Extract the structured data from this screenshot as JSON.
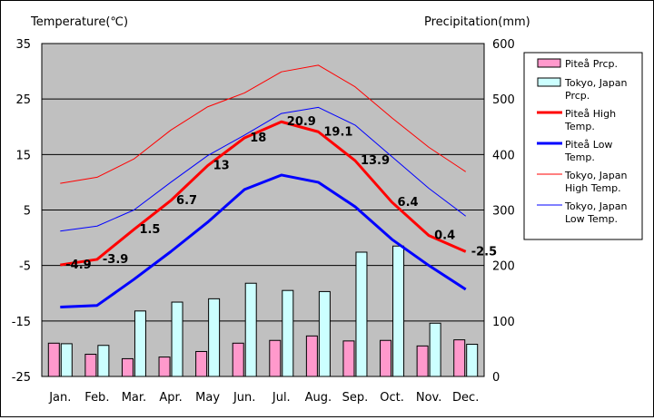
{
  "chart_data": {
    "type": "bar+line",
    "title_left": "Temperature(℃)",
    "title_right": "Precipitation(mm)",
    "categories": [
      "Jan.",
      "Feb.",
      "Mar.",
      "Apr.",
      "May",
      "Jun.",
      "Jul.",
      "Aug.",
      "Sep.",
      "Oct.",
      "Nov.",
      "Dec."
    ],
    "y_left": {
      "min": -25,
      "max": 35,
      "ticks": [
        35,
        25,
        15,
        5,
        -5,
        -15,
        -25
      ]
    },
    "y_right": {
      "min": 0,
      "max": 600,
      "ticks": [
        600,
        500,
        400,
        300,
        200,
        100,
        0
      ]
    },
    "bars": [
      {
        "name": "Piteå Prcp.",
        "color": "#ff99cc",
        "values": [
          60,
          40,
          32,
          35,
          45,
          60,
          65,
          73,
          64,
          65,
          55,
          66
        ]
      },
      {
        "name": "Tokyo, Japan Prcp.",
        "color": "#ccffff",
        "values": [
          59,
          56,
          118,
          134,
          140,
          168,
          155,
          153,
          224,
          235,
          96,
          58
        ]
      }
    ],
    "lines": [
      {
        "name": "Piteå High Temp.",
        "color": "#ff0000",
        "width": 3,
        "values": [
          -4.9,
          -3.9,
          1.5,
          6.7,
          13,
          18,
          20.9,
          19.1,
          13.9,
          6.4,
          0.4,
          -2.5
        ],
        "labels": [
          "-4.9",
          "-3.9",
          "1.5",
          "6.7",
          "13",
          "18",
          "20.9",
          "19.1",
          "13.9",
          "6.4",
          "0.4",
          "-2.5"
        ]
      },
      {
        "name": "Piteå Low Temp.",
        "color": "#0000ff",
        "width": 3,
        "values": [
          -12.5,
          -12.2,
          -7.5,
          -2.5,
          2.8,
          8.7,
          11.3,
          10,
          5.6,
          -0.3,
          -5,
          -9.3
        ]
      },
      {
        "name": "Tokyo, Japan High Temp.",
        "color": "#ff0000",
        "width": 1,
        "values": [
          9.8,
          10.9,
          14.2,
          19.4,
          23.6,
          26.1,
          29.9,
          31.1,
          27.2,
          21.6,
          16.3,
          11.9
        ]
      },
      {
        "name": "Tokyo, Japan Low Temp.",
        "color": "#0000ff",
        "width": 1,
        "values": [
          1.2,
          2.1,
          5,
          10,
          14.8,
          18.5,
          22.4,
          23.5,
          20.3,
          14.6,
          8.9,
          3.9
        ]
      }
    ],
    "legend": [
      {
        "kind": "bar",
        "color": "#ff99cc",
        "lines": [
          "Piteå Prcp."
        ]
      },
      {
        "kind": "bar",
        "color": "#ccffff",
        "lines": [
          "Tokyo, Japan",
          "Prcp."
        ]
      },
      {
        "kind": "line",
        "color": "#ff0000",
        "width": 3,
        "lines": [
          "Piteå High",
          "Temp."
        ]
      },
      {
        "kind": "line",
        "color": "#0000ff",
        "width": 3,
        "lines": [
          "Piteå Low",
          "Temp."
        ]
      },
      {
        "kind": "line",
        "color": "#ff0000",
        "width": 1,
        "lines": [
          "Tokyo, Japan",
          "High Temp."
        ]
      },
      {
        "kind": "line",
        "color": "#0000ff",
        "width": 1,
        "lines": [
          "Tokyo, Japan",
          "Low Temp."
        ]
      }
    ],
    "legend_position": "right",
    "plot_background": "#c0c0c0",
    "grid": true
  }
}
